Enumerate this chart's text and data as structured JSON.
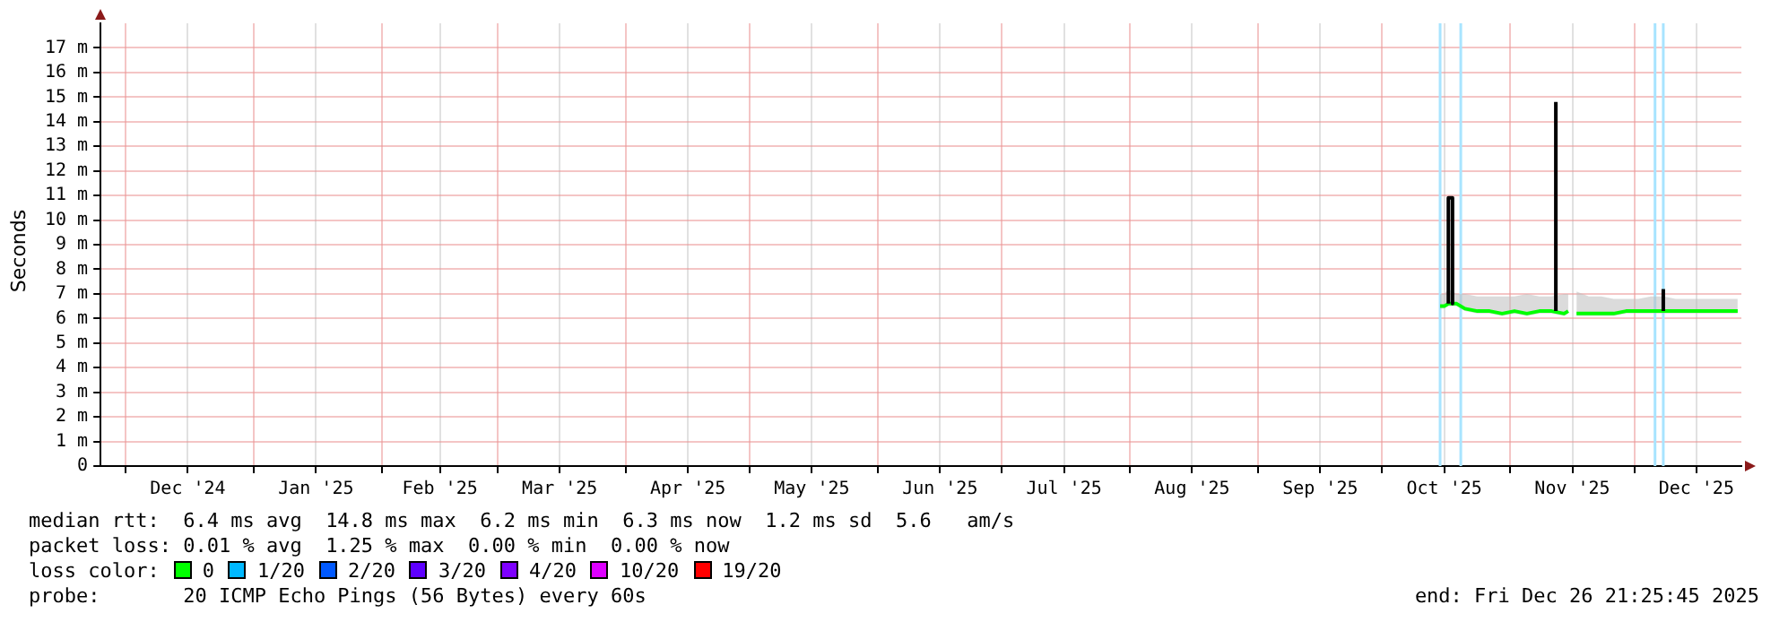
{
  "chart_data": {
    "type": "line",
    "ylabel": "Seconds",
    "legend_title": "loss color:",
    "legend": "bottom",
    "grid": true,
    "marker": "none",
    "line_style": "solid",
    "xlim": [
      "2024-11-24T21:25",
      "2025-12-26T21:25"
    ],
    "xticks": [
      {
        "value": "2024-12-01",
        "label": null
      },
      {
        "value": "2024-12-16",
        "label": "Dec '24"
      },
      {
        "value": "2025-01-01",
        "label": null
      },
      {
        "value": "2025-01-16",
        "label": "Jan '25"
      },
      {
        "value": "2025-02-01",
        "label": null
      },
      {
        "value": "2025-02-15",
        "label": "Feb '25"
      },
      {
        "value": "2025-03-01",
        "label": null
      },
      {
        "value": "2025-03-16",
        "label": "Mar '25"
      },
      {
        "value": "2025-04-01",
        "label": null
      },
      {
        "value": "2025-04-16",
        "label": "Apr '25"
      },
      {
        "value": "2025-05-01",
        "label": null
      },
      {
        "value": "2025-05-16",
        "label": "May '25"
      },
      {
        "value": "2025-06-01",
        "label": null
      },
      {
        "value": "2025-06-16",
        "label": "Jun '25"
      },
      {
        "value": "2025-07-01",
        "label": null
      },
      {
        "value": "2025-07-16",
        "label": "Jul '25"
      },
      {
        "value": "2025-08-01",
        "label": null
      },
      {
        "value": "2025-08-16",
        "label": "Aug '25"
      },
      {
        "value": "2025-09-01",
        "label": null
      },
      {
        "value": "2025-09-16",
        "label": "Sep '25"
      },
      {
        "value": "2025-10-01",
        "label": null
      },
      {
        "value": "2025-10-16",
        "label": "Oct '25"
      },
      {
        "value": "2025-11-01",
        "label": null
      },
      {
        "value": "2025-11-16",
        "label": "Nov '25"
      },
      {
        "value": "2025-12-01",
        "label": null
      },
      {
        "value": "2025-12-16",
        "label": "Dec '25"
      }
    ],
    "ylim": [
      0,
      18
    ],
    "yticks": [
      0,
      {
        "value": 1,
        "label": "1 m"
      },
      {
        "value": 2,
        "label": "2 m"
      },
      {
        "value": 3,
        "label": "3 m"
      },
      {
        "value": 4,
        "label": "4 m"
      },
      {
        "value": 5,
        "label": "5 m"
      },
      {
        "value": 6,
        "label": "6 m"
      },
      {
        "value": 7,
        "label": "7 m"
      },
      {
        "value": 8,
        "label": "8 m"
      },
      {
        "value": 9,
        "label": "9 m"
      },
      {
        "value": 10,
        "label": "10 m"
      },
      {
        "value": 11,
        "label": "11 m"
      },
      {
        "value": 12,
        "label": "12 m"
      },
      {
        "value": 13,
        "label": "13 m"
      },
      {
        "value": 14,
        "label": "14 m"
      },
      {
        "value": 15,
        "label": "15 m"
      },
      {
        "value": 16,
        "label": "16 m"
      },
      {
        "value": 17,
        "label": "17 m"
      }
    ],
    "ref_lines": [
      {
        "axis": "x",
        "value": "2025-10-15",
        "color": "#a8e4ff"
      },
      {
        "axis": "x",
        "value": "2025-10-20",
        "color": "#a8e4ff"
      },
      {
        "axis": "x",
        "value": "2025-12-06",
        "color": "#a8e4ff"
      },
      {
        "axis": "x",
        "value": "2025-12-08",
        "color": "#a8e4ff"
      }
    ],
    "series": [
      {
        "name": "0",
        "color": "#00ff00",
        "x": [
          "2025-10-15",
          "2025-10-16",
          "2025-10-17",
          "2025-10-18",
          "2025-10-19",
          "2025-10-21",
          "2025-10-24",
          "2025-10-27",
          "2025-10-30",
          "2025-11-02",
          "2025-11-05",
          "2025-11-08",
          "2025-11-11",
          "2025-11-14",
          "2025-11-15",
          "2025-11-16",
          "2025-11-17",
          "2025-11-20",
          "2025-11-23",
          "2025-11-26",
          "2025-11-29",
          "2025-12-02",
          "2025-12-05",
          "2025-12-08",
          "2025-12-11",
          "2025-12-14",
          "2025-12-17",
          "2025-12-20",
          "2025-12-23",
          "2025-12-26"
        ],
        "values": [
          6.5,
          6.5,
          6.6,
          6.6,
          6.6,
          6.4,
          6.3,
          6.3,
          6.2,
          6.3,
          6.2,
          6.3,
          6.3,
          6.2,
          6.3,
          null,
          6.2,
          6.2,
          6.2,
          6.2,
          6.3,
          6.3,
          6.3,
          6.3,
          6.3,
          6.3,
          6.3,
          6.3,
          6.3,
          6.3
        ],
        "lower": [
          6.4,
          6.4,
          6.5,
          6.5,
          6.5,
          6.3,
          6.2,
          6.2,
          6.1,
          6.2,
          6.1,
          6.2,
          6.2,
          6.1,
          6.2,
          null,
          6.1,
          6.1,
          6.1,
          6.1,
          6.2,
          6.2,
          6.2,
          6.2,
          6.2,
          6.2,
          6.2,
          6.2,
          6.2,
          6.2
        ],
        "upper": [
          7.0,
          7.0,
          7.2,
          7.1,
          7.0,
          7.0,
          6.9,
          6.9,
          6.9,
          6.9,
          7.0,
          6.9,
          6.9,
          7.0,
          7.0,
          null,
          7.1,
          6.9,
          6.9,
          6.8,
          6.8,
          6.8,
          6.9,
          6.9,
          6.8,
          6.8,
          6.8,
          6.8,
          6.8,
          6.8
        ]
      },
      {
        "color": "#000000",
        "x": [
          "2025-10-17",
          "2025-10-17",
          "2025-10-18",
          "2025-10-18",
          "2025-10-19",
          "2025-11-12",
          "2025-11-12",
          "2025-11-13",
          "2025-12-08",
          "2025-12-08"
        ],
        "values": [
          6.6,
          10.9,
          10.9,
          6.6,
          null,
          6.3,
          14.8,
          null,
          6.3,
          7.2
        ]
      },
      {
        "name": "1/20",
        "color": "#00b8ff"
      },
      {
        "name": "2/20",
        "color": "#0059ff"
      },
      {
        "name": "3/20",
        "color": "#5e00ff"
      },
      {
        "name": "4/20",
        "color": "#7e00ff"
      },
      {
        "name": "10/20",
        "color": "#dd00ff"
      },
      {
        "name": "19/20",
        "color": "#ff0000"
      }
    ],
    "annotations": [
      "median rtt:  6.4 ms avg  14.8 ms max  6.2 ms min  6.3 ms now  1.2 ms sd  5.6   am/s",
      "packet loss: 0.01 % avg  1.25 % max  0.00 % min  0.00 % now",
      "probe:       20 ICMP Echo Pings (56 Bytes) every 60s",
      "end: Fri Dec 26 21:25:45 2025"
    ]
  }
}
